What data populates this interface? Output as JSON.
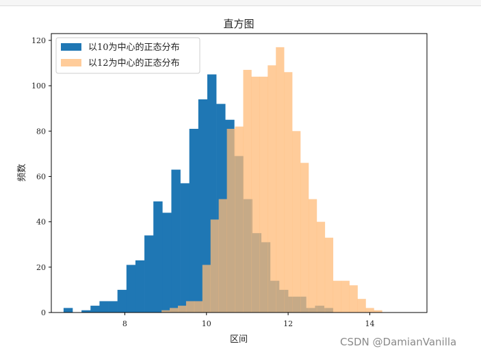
{
  "watermark": "CSDN @DamianVanilla",
  "chart_data": {
    "type": "bar",
    "title": "直方图",
    "xlabel": "区间",
    "ylabel": "频数",
    "xlim": [
      6.2,
      15.4
    ],
    "ylim": [
      0,
      123
    ],
    "xticks": [
      8,
      10,
      12,
      14
    ],
    "yticks": [
      0,
      20,
      40,
      60,
      80,
      100,
      120
    ],
    "legend_position": "top-left",
    "overlap_color": "#7b7b70",
    "series": [
      {
        "name": "以10为中心的正态分布",
        "color": "#1f77b4",
        "alpha": 1.0,
        "bin_edges": [
          6.5,
          6.72,
          6.94,
          7.16,
          7.38,
          7.6,
          7.82,
          8.04,
          8.26,
          8.48,
          8.7,
          8.92,
          9.14,
          9.36,
          9.58,
          9.8,
          10.02,
          10.24,
          10.46,
          10.68,
          10.9,
          11.12,
          11.34,
          11.56,
          11.78,
          12.0,
          12.22,
          12.44,
          12.66,
          12.88,
          13.1
        ],
        "values": [
          2,
          0,
          1,
          3,
          5,
          5,
          10,
          21,
          23,
          34,
          49,
          44,
          63,
          57,
          81,
          94,
          105,
          92,
          85,
          69,
          50,
          35,
          31,
          14,
          10,
          7,
          7,
          2,
          3,
          2
        ]
      },
      {
        "name": "以12为中心的正态分布",
        "color": "#ffbb78",
        "alpha": 0.75,
        "bin_edges": [
          8.9,
          9.1,
          9.3,
          9.5,
          9.7,
          9.9,
          10.1,
          10.3,
          10.5,
          10.7,
          10.9,
          11.1,
          11.3,
          11.5,
          11.7,
          11.9,
          12.1,
          12.3,
          12.5,
          12.7,
          12.9,
          13.1,
          13.3,
          13.5,
          13.7,
          13.9,
          14.1,
          14.3,
          14.5,
          14.7,
          14.9,
          15.1
        ],
        "values": [
          1,
          2,
          3,
          5,
          5,
          21,
          41,
          50,
          81,
          82,
          107,
          104,
          104,
          109,
          117,
          106,
          80,
          66,
          50,
          40,
          33,
          14,
          14,
          12,
          6,
          2,
          1,
          0,
          0,
          0,
          0
        ]
      }
    ]
  }
}
